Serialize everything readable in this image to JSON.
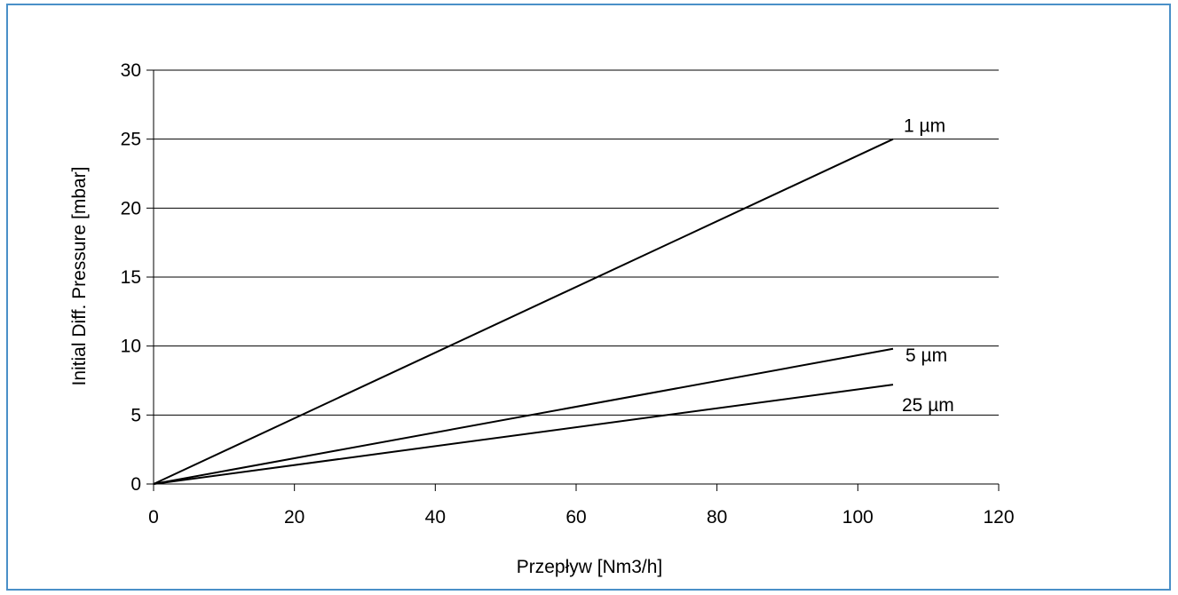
{
  "chart_data": {
    "type": "line",
    "title": "",
    "xlabel": "Przepływ [Nm3/h]",
    "ylabel": "Initial Diff. Pressure [mbar]",
    "xlim": [
      0,
      120
    ],
    "ylim": [
      0,
      30
    ],
    "x_ticks": [
      0,
      20,
      40,
      60,
      80,
      100,
      120
    ],
    "y_ticks": [
      0,
      5,
      10,
      15,
      20,
      25,
      30
    ],
    "grid": "horizontal",
    "series": [
      {
        "name": "1 µm",
        "x": [
          0,
          105
        ],
        "y": [
          0,
          25
        ]
      },
      {
        "name": "5 µm",
        "x": [
          0,
          105
        ],
        "y": [
          0,
          9.8
        ]
      },
      {
        "name": "25 µm",
        "x": [
          0,
          105
        ],
        "y": [
          0,
          7.2
        ]
      }
    ],
    "colors": {
      "line": "#000000",
      "grid": "#000000",
      "frame": "#4a90c8"
    }
  }
}
